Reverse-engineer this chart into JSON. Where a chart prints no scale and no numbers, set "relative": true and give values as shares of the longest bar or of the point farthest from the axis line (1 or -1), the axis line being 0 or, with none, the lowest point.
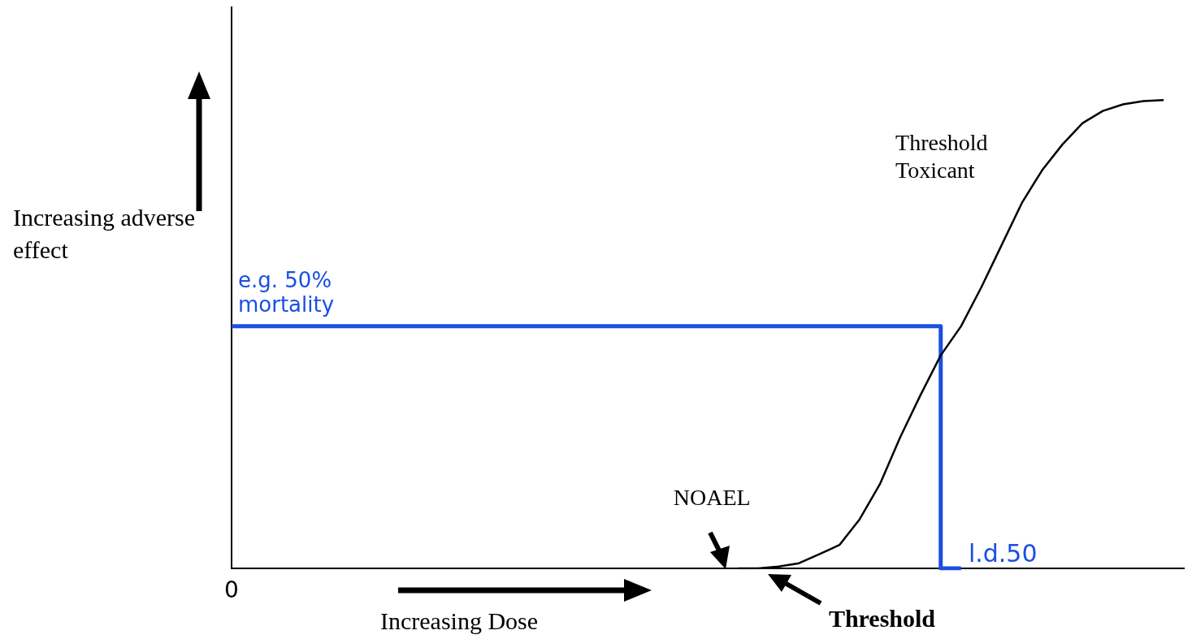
{
  "chart_data": {
    "type": "line",
    "relative": true,
    "xlabel": "Increasing Dose",
    "ylabel": "Increasing adverse effect",
    "grid": false,
    "legend": false,
    "marker": "none",
    "line_style": "solid",
    "categories": [
      null,
      null,
      null,
      null,
      null,
      null,
      null,
      null,
      null,
      null,
      null,
      null,
      null,
      null,
      null,
      null,
      null,
      null,
      null,
      null,
      null,
      null,
      null,
      null,
      null,
      null,
      null,
      null,
      null,
      null,
      null,
      null,
      null,
      null,
      null,
      null,
      null,
      null,
      null,
      null,
      null,
      null,
      null,
      null,
      null,
      null,
      null,
      null
    ],
    "series": [
      {
        "name": "Threshold Toxicant",
        "color": "#000000",
        "values": [
          null,
          null,
          null,
          null,
          null,
          null,
          null,
          null,
          null,
          null,
          null,
          null,
          null,
          null,
          null,
          null,
          null,
          null,
          null,
          null,
          null,
          null,
          null,
          null,
          null,
          0,
          0,
          0.004,
          0.011,
          0.03,
          0.05,
          0.105,
          0.18,
          0.28,
          0.37,
          0.455,
          0.517,
          0.6,
          0.69,
          0.78,
          0.85,
          0.905,
          0.951,
          0.977,
          0.991,
          0.998,
          1,
          null
        ]
      },
      {
        "type": "step",
        "color": "#1a4fe0",
        "values": [
          0.517,
          0.517,
          0.517,
          0.517,
          0.517,
          0.517,
          0.517,
          0.517,
          0.517,
          0.517,
          0.517,
          0.517,
          0.517,
          0.517,
          0.517,
          0.517,
          0.517,
          0.517,
          0.517,
          0.517,
          0.517,
          0.517,
          0.517,
          0.517,
          0.517,
          0.517,
          0.517,
          0.517,
          0.517,
          0.517,
          0.517,
          0.517,
          0.517,
          0.517,
          0.517,
          0.517,
          0,
          null,
          null,
          null,
          null,
          null,
          null,
          null,
          null,
          null,
          null,
          null
        ]
      }
    ],
    "annotations": [
      "e.g. 50% mortality",
      "l.d.50",
      "NOAEL",
      "Threshold",
      "0"
    ]
  }
}
